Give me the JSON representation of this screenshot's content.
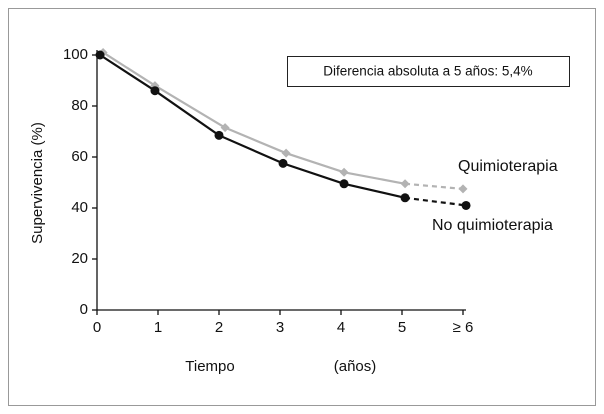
{
  "chart_data": {
    "type": "line",
    "annotation": "Diferencia absoluta a 5 años: 5,4%",
    "ylabel": "Supervivencia (%)",
    "xlabel": [
      "Tiempo",
      "(años)"
    ],
    "xlim": [
      0,
      6
    ],
    "ylim": [
      0,
      100
    ],
    "xticks": [
      0,
      1,
      2,
      3,
      4,
      5,
      {
        "value": 6,
        "label": "≥ 6"
      }
    ],
    "yticks": [
      0,
      20,
      40,
      60,
      80,
      100
    ],
    "dashed_last_segment": true,
    "series": [
      {
        "name": "Quimioterapia",
        "color": "#b3b3b3",
        "marker": "diamond",
        "x": [
          0.1,
          0.95,
          2.1,
          3.1,
          4.05,
          5.05,
          6.0
        ],
        "values": [
          101,
          88,
          71.5,
          61.5,
          54,
          49.5,
          47.5
        ]
      },
      {
        "name": "No quimioterapia",
        "color": "#111111",
        "marker": "circle",
        "x": [
          0.05,
          0.95,
          2.0,
          3.05,
          4.05,
          5.05,
          6.05
        ],
        "values": [
          100,
          86,
          68.5,
          57.5,
          49.5,
          44,
          41
        ]
      }
    ]
  }
}
